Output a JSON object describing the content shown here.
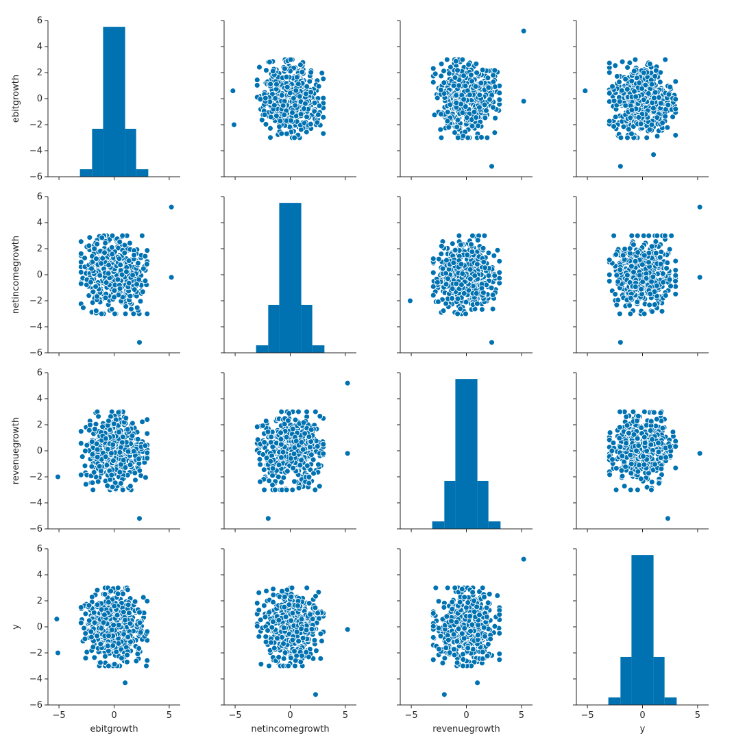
{
  "chart_data": {
    "type": "pairplot",
    "variables": [
      "ebitgrowth",
      "netincomegrowth",
      "revenuegrowth",
      "y"
    ],
    "axis_range": [
      -6,
      6
    ],
    "y_ticks": [
      -6,
      -4,
      -2,
      0,
      2,
      4,
      6
    ],
    "x_ticks": [
      -5,
      0,
      5
    ],
    "marker_color": "#0072b2",
    "diagonal": {
      "type": "histogram",
      "bins": [
        {
          "x0": -3.1,
          "x1": -2.0,
          "height": 0.05
        },
        {
          "x0": -2.0,
          "x1": -1.0,
          "height": 0.32
        },
        {
          "x0": -1.0,
          "x1": 0.0,
          "height": 1.0
        },
        {
          "x0": 0.0,
          "x1": 1.0,
          "height": 1.0
        },
        {
          "x0": 1.0,
          "x1": 2.0,
          "height": 0.32
        },
        {
          "x0": 2.0,
          "x1": 3.1,
          "height": 0.05
        }
      ]
    },
    "offdiagonal": {
      "type": "scatter",
      "bulk_range": [
        -3,
        3
      ],
      "outliers": [
        [
          5.2,
          5.2
        ],
        [
          -5.2,
          0.6
        ],
        [
          2.3,
          -5.2
        ],
        [
          -2.0,
          -5.2
        ],
        [
          -5.1,
          -2.0
        ],
        [
          5.2,
          -0.2
        ],
        [
          1.0,
          -4.3
        ],
        [
          -0.5,
          2.3
        ]
      ]
    }
  }
}
